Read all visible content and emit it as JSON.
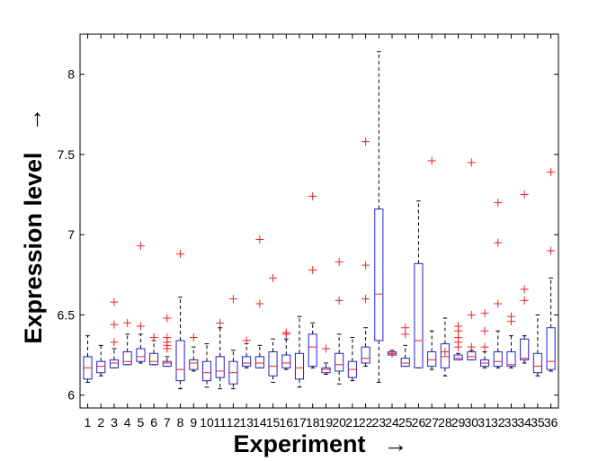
{
  "chart_data": {
    "type": "box",
    "xlabel": "Experiment",
    "ylabel": "Expression level",
    "label_arrow": "→",
    "ylim": [
      5.92,
      8.25
    ],
    "yticks": [
      6,
      6.5,
      7,
      7.5,
      8
    ],
    "ytick_labels": [
      "6",
      "6.5",
      "7",
      "7.5",
      "8"
    ],
    "grid": false,
    "colors": {
      "box": "#2222cc",
      "median": "#ee2222",
      "outlier": "#ee2222",
      "whisker": "#000000"
    },
    "categories": [
      "1",
      "2",
      "3",
      "4",
      "5",
      "6",
      "7",
      "8",
      "9",
      "10",
      "11",
      "12",
      "13",
      "14",
      "15",
      "16",
      "17",
      "18",
      "19",
      "20",
      "21",
      "22",
      "23",
      "24",
      "25",
      "26",
      "27",
      "28",
      "29",
      "30",
      "31",
      "32",
      "33",
      "34",
      "35",
      "36"
    ],
    "boxes": [
      {
        "label": "1",
        "whisker_low": 6.08,
        "q1": 6.1,
        "median": 6.17,
        "q3": 6.24,
        "whisker_high": 6.37,
        "outliers": []
      },
      {
        "label": "2",
        "whisker_low": 6.12,
        "q1": 6.14,
        "median": 6.18,
        "q3": 6.21,
        "whisker_high": 6.31,
        "outliers": []
      },
      {
        "label": "3",
        "whisker_low": 6.17,
        "q1": 6.17,
        "median": 6.2,
        "q3": 6.22,
        "whisker_high": 6.29,
        "outliers": [
          6.33,
          6.44,
          6.58
        ]
      },
      {
        "label": "4",
        "whisker_low": 6.19,
        "q1": 6.19,
        "median": 6.21,
        "q3": 6.27,
        "whisker_high": 6.38,
        "outliers": [
          6.45
        ]
      },
      {
        "label": "5",
        "whisker_low": 6.2,
        "q1": 6.21,
        "median": 6.24,
        "q3": 6.29,
        "whisker_high": 6.38,
        "outliers": [
          6.43,
          6.93
        ]
      },
      {
        "label": "6",
        "whisker_low": 6.19,
        "q1": 6.19,
        "median": 6.21,
        "q3": 6.26,
        "whisker_high": 6.34,
        "outliers": [
          6.36
        ]
      },
      {
        "label": "7",
        "whisker_low": 6.18,
        "q1": 6.18,
        "median": 6.2,
        "q3": 6.21,
        "whisker_high": 6.24,
        "outliers": [
          6.29,
          6.31,
          6.33,
          6.36,
          6.48
        ]
      },
      {
        "label": "8",
        "whisker_low": 6.04,
        "q1": 6.09,
        "median": 6.16,
        "q3": 6.34,
        "whisker_high": 6.61,
        "outliers": [
          6.88
        ]
      },
      {
        "label": "9",
        "whisker_low": 6.15,
        "q1": 6.16,
        "median": 6.2,
        "q3": 6.22,
        "whisker_high": 6.3,
        "outliers": [
          6.36
        ]
      },
      {
        "label": "10",
        "whisker_low": 6.05,
        "q1": 6.09,
        "median": 6.14,
        "q3": 6.21,
        "whisker_high": 6.32,
        "outliers": []
      },
      {
        "label": "11",
        "whisker_low": 6.04,
        "q1": 6.11,
        "median": 6.15,
        "q3": 6.24,
        "whisker_high": 6.42,
        "outliers": [
          6.45
        ]
      },
      {
        "label": "12",
        "whisker_low": 6.04,
        "q1": 6.07,
        "median": 6.14,
        "q3": 6.21,
        "whisker_high": 6.28,
        "outliers": [
          6.6
        ]
      },
      {
        "label": "13",
        "whisker_low": 6.17,
        "q1": 6.18,
        "median": 6.2,
        "q3": 6.24,
        "whisker_high": 6.32,
        "outliers": [
          6.34
        ]
      },
      {
        "label": "14",
        "whisker_low": 6.17,
        "q1": 6.17,
        "median": 6.2,
        "q3": 6.24,
        "whisker_high": 6.31,
        "outliers": [
          6.57,
          6.97
        ]
      },
      {
        "label": "15",
        "whisker_low": 6.08,
        "q1": 6.12,
        "median": 6.18,
        "q3": 6.27,
        "whisker_high": 6.35,
        "outliers": [
          6.73
        ]
      },
      {
        "label": "16",
        "whisker_low": 6.16,
        "q1": 6.17,
        "median": 6.2,
        "q3": 6.25,
        "whisker_high": 6.35,
        "outliers": [
          6.38,
          6.39
        ]
      },
      {
        "label": "17",
        "whisker_low": 6.05,
        "q1": 6.1,
        "median": 6.17,
        "q3": 6.26,
        "whisker_high": 6.49,
        "outliers": []
      },
      {
        "label": "18",
        "whisker_low": 6.17,
        "q1": 6.18,
        "median": 6.3,
        "q3": 6.38,
        "whisker_high": 6.45,
        "outliers": [
          6.78,
          7.24
        ]
      },
      {
        "label": "19",
        "whisker_low": 6.13,
        "q1": 6.14,
        "median": 6.16,
        "q3": 6.17,
        "whisker_high": 6.2,
        "outliers": [
          6.29
        ]
      },
      {
        "label": "20",
        "whisker_low": 6.07,
        "q1": 6.15,
        "median": 6.19,
        "q3": 6.26,
        "whisker_high": 6.38,
        "outliers": [
          6.59,
          6.83
        ]
      },
      {
        "label": "21",
        "whisker_low": 6.09,
        "q1": 6.11,
        "median": 6.16,
        "q3": 6.21,
        "whisker_high": 6.36,
        "outliers": []
      },
      {
        "label": "22",
        "whisker_low": 6.18,
        "q1": 6.2,
        "median": 6.23,
        "q3": 6.3,
        "whisker_high": 6.42,
        "outliers": [
          6.6,
          6.81,
          7.58
        ]
      },
      {
        "label": "23",
        "whisker_low": 6.08,
        "q1": 6.34,
        "median": 6.63,
        "q3": 7.16,
        "whisker_high": 8.14,
        "outliers": []
      },
      {
        "label": "24",
        "whisker_low": 6.25,
        "q1": 6.25,
        "median": 6.26,
        "q3": 6.27,
        "whisker_high": 6.28,
        "outliers": [
          6.26
        ]
      },
      {
        "label": "25",
        "whisker_low": 6.18,
        "q1": 6.18,
        "median": 6.2,
        "q3": 6.23,
        "whisker_high": 6.31,
        "outliers": [
          6.38,
          6.42
        ]
      },
      {
        "label": "26",
        "whisker_low": 6.17,
        "q1": 6.17,
        "median": 6.34,
        "q3": 6.82,
        "whisker_high": 7.21,
        "outliers": []
      },
      {
        "label": "27",
        "whisker_low": 6.16,
        "q1": 6.18,
        "median": 6.22,
        "q3": 6.27,
        "whisker_high": 6.4,
        "outliers": [
          7.46
        ]
      },
      {
        "label": "28",
        "whisker_low": 6.12,
        "q1": 6.17,
        "median": 6.24,
        "q3": 6.32,
        "whisker_high": 6.48,
        "outliers": [
          6.27
        ]
      },
      {
        "label": "29",
        "whisker_low": 6.22,
        "q1": 6.22,
        "median": 6.23,
        "q3": 6.25,
        "whisker_high": 6.26,
        "outliers": [
          6.3,
          6.33,
          6.36,
          6.4,
          6.43
        ]
      },
      {
        "label": "30",
        "whisker_low": 6.22,
        "q1": 6.22,
        "median": 6.24,
        "q3": 6.27,
        "whisker_high": 6.28,
        "outliers": [
          6.3,
          6.5,
          7.45
        ]
      },
      {
        "label": "31",
        "whisker_low": 6.17,
        "q1": 6.18,
        "median": 6.2,
        "q3": 6.22,
        "whisker_high": 6.27,
        "outliers": [
          6.3,
          6.4,
          6.51
        ]
      },
      {
        "label": "32",
        "whisker_low": 6.17,
        "q1": 6.18,
        "median": 6.21,
        "q3": 6.27,
        "whisker_high": 6.4,
        "outliers": [
          6.57,
          6.95,
          7.2
        ]
      },
      {
        "label": "33",
        "whisker_low": 6.17,
        "q1": 6.18,
        "median": 6.19,
        "q3": 6.27,
        "whisker_high": 6.37,
        "outliers": [
          6.46,
          6.49
        ]
      },
      {
        "label": "34",
        "whisker_low": 6.2,
        "q1": 6.22,
        "median": 6.23,
        "q3": 6.35,
        "whisker_high": 6.37,
        "outliers": [
          6.59,
          6.66,
          7.25
        ]
      },
      {
        "label": "35",
        "whisker_low": 6.12,
        "q1": 6.14,
        "median": 6.18,
        "q3": 6.26,
        "whisker_high": 6.5,
        "outliers": []
      },
      {
        "label": "36",
        "whisker_low": 6.15,
        "q1": 6.16,
        "median": 6.21,
        "q3": 6.42,
        "whisker_high": 6.73,
        "outliers": [
          6.9,
          7.39
        ]
      }
    ]
  }
}
